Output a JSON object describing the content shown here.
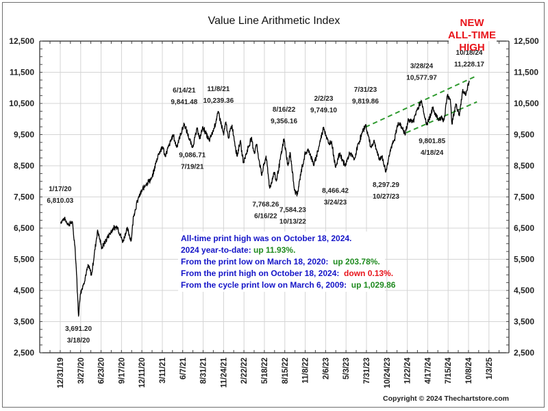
{
  "chart_data": {
    "type": "line",
    "title": "Value Line Arithmetic Index",
    "xlabel": "",
    "ylabel": "",
    "ylim": [
      2500,
      12500
    ],
    "y_ticks": [
      2500,
      3500,
      4500,
      5500,
      6500,
      7500,
      8500,
      9500,
      10500,
      11500,
      12500
    ],
    "y_tick_labels": [
      "2,500",
      "3,500",
      "4,500",
      "5,500",
      "6,500",
      "7,500",
      "8,500",
      "9,500",
      "10,500",
      "11,500",
      "12,500"
    ],
    "x_tick_labels": [
      "12/31/19",
      "3/27/20",
      "6/23/20",
      "9/17/20",
      "12/11/20",
      "3/11/21",
      "6/7/21",
      "8/31/21",
      "11/24/21",
      "2/22/22",
      "5/18/22",
      "8/15/22",
      "11/8/22",
      "2/6/23",
      "5/3/23",
      "7/31/23",
      "10/24/23",
      "1/22/24",
      "4/17/24",
      "7/15/24",
      "10/8/24",
      "1/3/25"
    ],
    "grid": true,
    "series": [
      {
        "name": "Value Line Arithmetic Index",
        "points": [
          [
            "1/2/20",
            6700
          ],
          [
            "1/17/20",
            6810.03
          ],
          [
            "2/5/20",
            6620
          ],
          [
            "2/20/20",
            6700
          ],
          [
            "3/3/20",
            5900
          ],
          [
            "3/10/20",
            5000
          ],
          [
            "3/18/20",
            3691.2
          ],
          [
            "3/26/20",
            4400
          ],
          [
            "4/8/20",
            4700
          ],
          [
            "4/29/20",
            5300
          ],
          [
            "5/13/20",
            5000
          ],
          [
            "6/8/20",
            6450
          ],
          [
            "6/26/20",
            5850
          ],
          [
            "7/20/20",
            6200
          ],
          [
            "8/14/20",
            6500
          ],
          [
            "9/1/20",
            6550
          ],
          [
            "9/24/20",
            6050
          ],
          [
            "10/12/20",
            6500
          ],
          [
            "10/30/20",
            6100
          ],
          [
            "11/9/20",
            6900
          ],
          [
            "12/1/20",
            7500
          ],
          [
            "12/31/20",
            7900
          ],
          [
            "1/27/21",
            8100
          ],
          [
            "2/24/21",
            8900
          ],
          [
            "3/15/21",
            9100
          ],
          [
            "3/24/21",
            8800
          ],
          [
            "4/28/21",
            9500
          ],
          [
            "5/12/21",
            9100
          ],
          [
            "6/14/21",
            9841.48
          ],
          [
            "7/19/21",
            9086.71
          ],
          [
            "8/10/21",
            9700
          ],
          [
            "8/19/21",
            9350
          ],
          [
            "9/2/21",
            9750
          ],
          [
            "9/30/21",
            9300
          ],
          [
            "10/20/21",
            9700
          ],
          [
            "11/8/21",
            10239.36
          ],
          [
            "11/30/21",
            9500
          ],
          [
            "12/10/21",
            9900
          ],
          [
            "12/20/21",
            9400
          ],
          [
            "1/5/22",
            9800
          ],
          [
            "1/27/22",
            8800
          ],
          [
            "2/9/22",
            9300
          ],
          [
            "2/23/22",
            8600
          ],
          [
            "3/29/22",
            9400
          ],
          [
            "4/11/22",
            8900
          ],
          [
            "4/20/22",
            9200
          ],
          [
            "5/12/22",
            8200
          ],
          [
            "5/31/22",
            8800
          ],
          [
            "6/16/22",
            7768.26
          ],
          [
            "7/5/22",
            8300
          ],
          [
            "7/14/22",
            8000
          ],
          [
            "8/16/22",
            9356.16
          ],
          [
            "9/2/22",
            8500
          ],
          [
            "9/12/22",
            8900
          ],
          [
            "9/30/22",
            7700
          ],
          [
            "10/13/22",
            7584.23
          ],
          [
            "10/28/22",
            8300
          ],
          [
            "11/15/22",
            8900
          ],
          [
            "12/1/22",
            9000
          ],
          [
            "12/22/22",
            8500
          ],
          [
            "1/12/23",
            9100
          ],
          [
            "2/2/23",
            9749.1
          ],
          [
            "2/23/23",
            9200
          ],
          [
            "3/8/23",
            9300
          ],
          [
            "3/24/23",
            8466.42
          ],
          [
            "4/12/23",
            8900
          ],
          [
            "5/4/23",
            8500
          ],
          [
            "5/25/23",
            8900
          ],
          [
            "6/14/23",
            8700
          ],
          [
            "6/30/23",
            9200
          ],
          [
            "7/31/23",
            9819.86
          ],
          [
            "8/24/23",
            9100
          ],
          [
            "9/7/23",
            9300
          ],
          [
            "9/27/23",
            8700
          ],
          [
            "10/10/23",
            8800
          ],
          [
            "10/27/23",
            8297.29
          ],
          [
            "11/14/23",
            9000
          ],
          [
            "12/1/23",
            9300
          ],
          [
            "12/19/23",
            9900
          ],
          [
            "1/5/24",
            9700
          ],
          [
            "1/17/24",
            9500
          ],
          [
            "2/1/24",
            10000
          ],
          [
            "2/20/24",
            9900
          ],
          [
            "3/8/24",
            10300
          ],
          [
            "3/28/24",
            10577.97
          ],
          [
            "4/18/24",
            9801.85
          ],
          [
            "5/15/24",
            10350
          ],
          [
            "6/5/24",
            10000
          ],
          [
            "6/20/24",
            10050
          ],
          [
            "7/2/24",
            9950
          ],
          [
            "7/16/24",
            10750
          ],
          [
            "7/29/24",
            10650
          ],
          [
            "8/5/24",
            9850
          ],
          [
            "8/22/24",
            10500
          ],
          [
            "9/6/24",
            10100
          ],
          [
            "9/19/24",
            10900
          ],
          [
            "10/4/24",
            10800
          ],
          [
            "10/18/24",
            11228.17
          ]
        ]
      }
    ],
    "trend_channel": {
      "color": "#2e9a2e",
      "style": "dashed",
      "upper": [
        [
          "7/31/23",
          9740
        ],
        [
          "11/20/24",
          11390
        ]
      ],
      "lower": [
        [
          "1/22/24",
          9560
        ],
        [
          "11/20/24",
          10550
        ]
      ]
    },
    "annotations": [
      {
        "date": "1/17/20",
        "value": "6,810.03",
        "position": "above"
      },
      {
        "date": "3/18/20",
        "value": "3,691.20",
        "position": "below"
      },
      {
        "date": "6/14/21",
        "value": "9,841.48",
        "position": "above"
      },
      {
        "date": "7/19/21",
        "value": "9,086.71",
        "position": "below"
      },
      {
        "date": "11/8/21",
        "value": "10,239.36",
        "position": "above"
      },
      {
        "date": "6/16/22",
        "value": "7,768.26",
        "position": "below"
      },
      {
        "date": "8/16/22",
        "value": "9,356.16",
        "position": "above"
      },
      {
        "date": "10/13/22",
        "value": "7,584.23",
        "position": "below"
      },
      {
        "date": "2/2/23",
        "value": "9,749.10",
        "position": "above"
      },
      {
        "date": "3/24/23",
        "value": "8,466.42",
        "position": "below"
      },
      {
        "date": "7/31/23",
        "value": "9,819.86",
        "position": "above"
      },
      {
        "date": "10/27/23",
        "value": "8,297.29",
        "position": "below"
      },
      {
        "date": "3/28/24",
        "value": "10,577.97",
        "position": "above"
      },
      {
        "date": "4/18/24",
        "value": "9,801.85",
        "position": "below"
      },
      {
        "date": "10/18/24",
        "value": "11,228.17",
        "position": "above"
      }
    ],
    "callout": {
      "lines": [
        "NEW",
        "ALL-TIME",
        "HIGH"
      ],
      "color": "#e8141b"
    },
    "info_box": {
      "lines": [
        {
          "parts": [
            {
              "text": "All-time print high was on October 18, 2024.",
              "color": "#1515c8"
            }
          ]
        },
        {
          "parts": [
            {
              "text": "2024 year-to-date: ",
              "color": "#1515c8"
            },
            {
              "text": "up 11.93%.",
              "color": "#1f8a1f"
            }
          ]
        },
        {
          "parts": [
            {
              "text": "From the print low on March 18, 2020:  ",
              "color": "#1515c8"
            },
            {
              "text": "up 203.78%.",
              "color": "#1f8a1f"
            }
          ]
        },
        {
          "parts": [
            {
              "text": "From the print high on October 18, 2024:  ",
              "color": "#1515c8"
            },
            {
              "text": "down 0.13%.",
              "color": "#e8141b"
            }
          ]
        },
        {
          "parts": [
            {
              "text": "From the cycle print low on March 6, 2009:  ",
              "color": "#1515c8"
            },
            {
              "text": "up 1,029.86",
              "color": "#1f8a1f"
            }
          ]
        }
      ]
    },
    "copyright": "Copyright © 2024 Thechartstore.com",
    "line_color": "#000000",
    "grid_color": "#d4d4d4"
  }
}
